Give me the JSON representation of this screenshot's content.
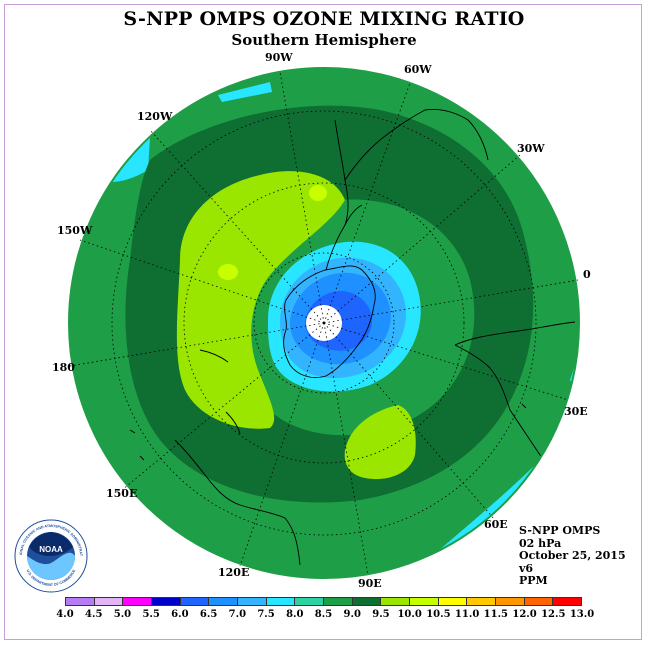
{
  "title": "S-NPP OMPS OZONE MIXING RATIO",
  "subtitle": "Southern Hemisphere",
  "longitude_labels": [
    "90W",
    "60W",
    "30W",
    "0",
    "30E",
    "60E",
    "90E",
    "120E",
    "150E",
    "180",
    "150W",
    "120W"
  ],
  "info": {
    "product": "S-NPP OMPS",
    "level": "02 hPa",
    "date": "October 25, 2015",
    "version": "v6",
    "units": "PPM"
  },
  "colorbar": {
    "labels": [
      "4.0",
      "4.5",
      "5.0",
      "5.5",
      "6.0",
      "6.5",
      "7.0",
      "7.5",
      "8.0",
      "8.5",
      "9.0",
      "9.5",
      "10.0",
      "10.5",
      "11.0",
      "11.5",
      "12.0",
      "12.5",
      "13.0"
    ],
    "colors": [
      "#b57cf5",
      "#e0b4f5",
      "#ff00ff",
      "#0000cd",
      "#1e64ff",
      "#1e90ff",
      "#32b4ff",
      "#28e6ff",
      "#2dd2a0",
      "#1e9e46",
      "#0f6e32",
      "#9be600",
      "#c8ff00",
      "#ffff00",
      "#ffc800",
      "#ff9600",
      "#ff6400",
      "#ff0000",
      "#8b4513"
    ]
  },
  "logo": {
    "text": "NOAA",
    "ring_text": "NATIONAL OCEANIC AND ATMOSPHERIC ADMINISTRATION",
    "ring_text_bottom": "U.S. DEPARTMENT OF COMMERCE"
  },
  "map": {
    "projection": "polar stereographic, south pole centered",
    "background_color": "#1e9e46",
    "contour_colors": {
      "8.0-8.5": "#1e9e46",
      "8.5-9.0": "#0f6e32",
      "9.0-9.5": "#9be600",
      "9.5-10.0": "#c8ff00",
      "7.5-8.0": "#28e6ff",
      "7.0-7.5": "#32b4ff",
      "6.5-7.0": "#1e90ff",
      "6.0-6.5": "#1e64ff"
    }
  }
}
